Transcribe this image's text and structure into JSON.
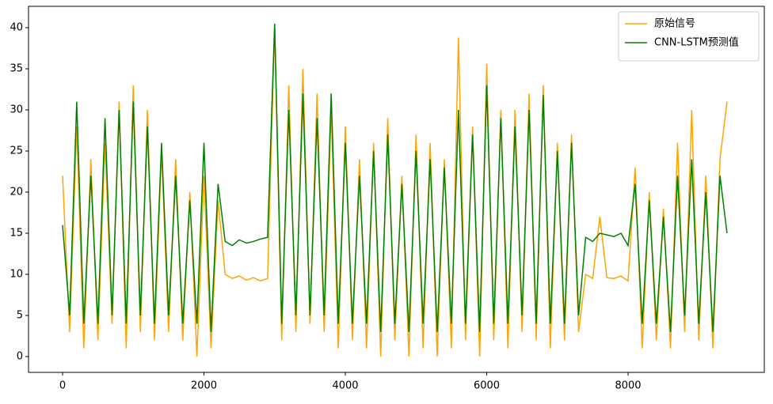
{
  "chart_data": {
    "type": "line",
    "x": [
      0,
      100,
      200,
      300,
      400,
      500,
      600,
      700,
      800,
      900,
      1000,
      1100,
      1200,
      1300,
      1400,
      1500,
      1600,
      1700,
      1800,
      1900,
      2000,
      2100,
      2200,
      2300,
      2400,
      2500,
      2600,
      2700,
      2800,
      2900,
      3000,
      3100,
      3200,
      3300,
      3400,
      3500,
      3600,
      3700,
      3800,
      3900,
      4000,
      4100,
      4200,
      4300,
      4400,
      4500,
      4600,
      4700,
      4800,
      4900,
      5000,
      5100,
      5200,
      5300,
      5400,
      5500,
      5600,
      5700,
      5800,
      5900,
      6000,
      6100,
      6200,
      6300,
      6400,
      6500,
      6600,
      6700,
      6800,
      6900,
      7000,
      7100,
      7200,
      7300,
      7400,
      7500,
      7600,
      7700,
      7800,
      7900,
      8000,
      8100,
      8200,
      8300,
      8400,
      8500,
      8600,
      8700,
      8800,
      8900,
      9000,
      9100,
      9200,
      9300,
      9400
    ],
    "series": [
      {
        "name": "原始信号",
        "color": "#ffa500",
        "values": [
          22,
          3,
          28,
          1,
          24,
          2,
          26,
          4,
          31,
          1,
          33,
          3,
          30,
          2,
          25,
          3,
          24,
          2,
          20,
          0,
          22,
          1,
          19,
          10,
          9.5,
          9.8,
          9.3,
          9.6,
          9.2,
          9.5,
          40,
          2,
          33,
          3,
          35,
          4,
          32,
          3,
          30,
          1,
          28,
          2,
          24,
          1,
          26,
          0,
          29,
          2,
          22,
          0,
          27,
          1,
          26,
          0,
          24,
          1,
          38.8,
          2,
          28,
          0,
          35.6,
          2,
          30,
          1,
          30,
          3,
          32,
          2,
          33,
          1,
          26,
          2,
          27,
          3,
          10,
          9.5,
          17,
          9.6,
          9.5,
          9.8,
          9.2,
          23,
          1,
          20,
          2,
          18,
          1,
          26,
          3,
          30,
          2,
          22,
          1,
          24,
          31
        ]
      },
      {
        "name": "CNN-LSTM预测值",
        "color": "#008000",
        "values": [
          16,
          5,
          31,
          4,
          22,
          4,
          29,
          5,
          30,
          4,
          31,
          5,
          28,
          4,
          26,
          5,
          22,
          4,
          19,
          4,
          26,
          3,
          21,
          14,
          13.5,
          14.2,
          13.8,
          14,
          14.3,
          14.5,
          40.5,
          4,
          30,
          5,
          32,
          5,
          29,
          5,
          32,
          4,
          26,
          4,
          22,
          4,
          25,
          3,
          27,
          4,
          21,
          3,
          25,
          4,
          24,
          3,
          23,
          4,
          30,
          4,
          27,
          3,
          33,
          4,
          29,
          4,
          28,
          5,
          30,
          4,
          31.8,
          4,
          25,
          4,
          26,
          5,
          14.5,
          14,
          15,
          14.8,
          14.6,
          15,
          13.5,
          21,
          4,
          19,
          4,
          17,
          3,
          22,
          5,
          24,
          4,
          20,
          3,
          22,
          15
        ]
      }
    ],
    "xlim": [
      -482,
      9927
    ],
    "ylim": [
      -1.92,
      42.6
    ],
    "xticks": [
      0,
      2000,
      4000,
      6000,
      8000
    ],
    "yticks": [
      0,
      5,
      10,
      15,
      20,
      25,
      30,
      35,
      40
    ],
    "legend": "upper right"
  }
}
